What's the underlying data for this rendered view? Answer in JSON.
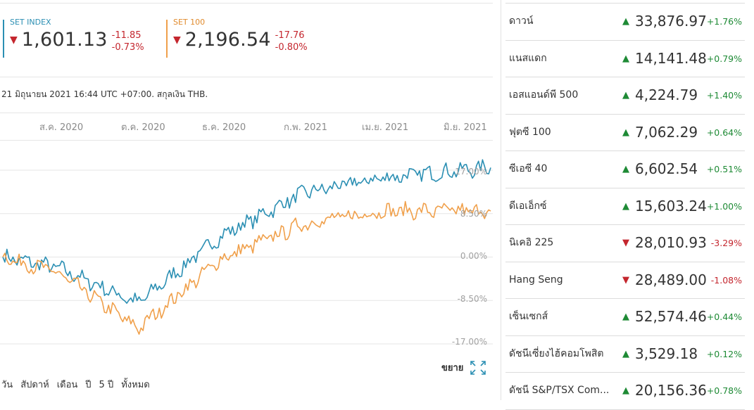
{
  "indices": [
    {
      "name": "SET INDEX",
      "value": "1,601.13",
      "change": "-11.85",
      "change_pct": "-0.73%",
      "color": "#2b8fb3",
      "direction": "down"
    },
    {
      "name": "SET 100",
      "value": "2,196.54",
      "change": "-17.76",
      "change_pct": "-0.80%",
      "color": "#f0a04b",
      "direction": "down"
    }
  ],
  "dateline": "21 มิถุนายน 2021 16:44 UTC +07:00. สกุลเงิน THB.",
  "chart": {
    "x_labels": [
      "ส.ค. 2020",
      "ต.ค. 2020",
      "ธ.ค. 2020",
      "ก.พ. 2021",
      "เม.ย. 2021",
      "มิ.ย. 2021"
    ],
    "y_labels": [
      "17.00%",
      "8.50%",
      "0.00%",
      "-8.50%",
      "-17.00%"
    ]
  },
  "chart_data": {
    "type": "line",
    "x": [
      "2020-06-22",
      "2020-08-01",
      "2020-10-01",
      "2020-12-01",
      "2021-02-01",
      "2021-04-01",
      "2021-06-21"
    ],
    "series": [
      {
        "name": "SET INDEX",
        "color": "#2b8fb3",
        "values": [
          0.0,
          -2.0,
          -9.0,
          4.0,
          12.5,
          15.5,
          17.5
        ]
      },
      {
        "name": "SET 100",
        "color": "#f0a04b",
        "values": [
          0.0,
          -3.0,
          -14.0,
          -0.5,
          6.5,
          9.0,
          9.0
        ]
      }
    ],
    "ylim": [
      -17,
      17
    ]
  },
  "expand_label": "ขยาย",
  "ranges": [
    "วัน",
    "สัปดาห์",
    "เดือน",
    "ปี",
    "5 ปี",
    "ทั้งหมด"
  ],
  "markets": [
    {
      "name": "ดาวน์",
      "value": "33,876.97",
      "change": "+1.76%",
      "direction": "up"
    },
    {
      "name": "แนสแดก",
      "value": "14,141.48",
      "change": "+0.79%",
      "direction": "up"
    },
    {
      "name": "เอสแอนด์พี 500",
      "value": "4,224.79",
      "change": "+1.40%",
      "direction": "up"
    },
    {
      "name": "ฟุตซี 100",
      "value": "7,062.29",
      "change": "+0.64%",
      "direction": "up"
    },
    {
      "name": "ซีเอซี 40",
      "value": "6,602.54",
      "change": "+0.51%",
      "direction": "up"
    },
    {
      "name": "ดีเอเอ็กซ์",
      "value": "15,603.24",
      "change": "+1.00%",
      "direction": "up"
    },
    {
      "name": "นิเคอิ 225",
      "value": "28,010.93",
      "change": "-3.29%",
      "direction": "down"
    },
    {
      "name": "Hang Seng",
      "value": "28,489.00",
      "change": "-1.08%",
      "direction": "down"
    },
    {
      "name": "เซ็นเซกส์",
      "value": "52,574.46",
      "change": "+0.44%",
      "direction": "up"
    },
    {
      "name": "ดัชนีเซี่ยงไฮ้คอมโพสิต",
      "value": "3,529.18",
      "change": "+0.12%",
      "direction": "up"
    },
    {
      "name": "ดัชนี S&P/TSX Com...",
      "value": "20,156.36",
      "change": "+0.78%",
      "direction": "up"
    }
  ]
}
